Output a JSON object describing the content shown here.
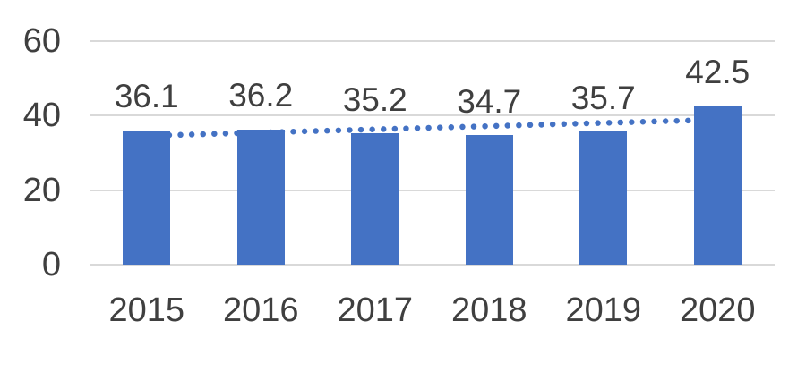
{
  "chart_data": {
    "type": "bar",
    "categories": [
      "2015",
      "2016",
      "2017",
      "2018",
      "2019",
      "2020"
    ],
    "values": [
      36.1,
      36.2,
      35.2,
      34.7,
      35.7,
      42.5
    ],
    "data_labels": [
      "36.1",
      "36.2",
      "35.2",
      "34.7",
      "35.7",
      "42.5"
    ],
    "title": "",
    "xlabel": "",
    "ylabel": "",
    "ylim": [
      0,
      60
    ],
    "yticks": [
      0,
      20,
      40,
      60
    ],
    "grid": true,
    "legend": false,
    "layout": {
      "data_labels_shown": true,
      "gridlines_horizontal_only": true,
      "axis_lines_shown": false
    },
    "trendline": {
      "type": "linear",
      "style": "dotted",
      "start_value": 34.6,
      "end_value": 38.9
    },
    "colors": {
      "bar": "#4472C4",
      "trendline": "#4472C4",
      "gridline": "#D9D9D9",
      "text": "#3F3F3F",
      "background": "#FFFFFF"
    }
  }
}
